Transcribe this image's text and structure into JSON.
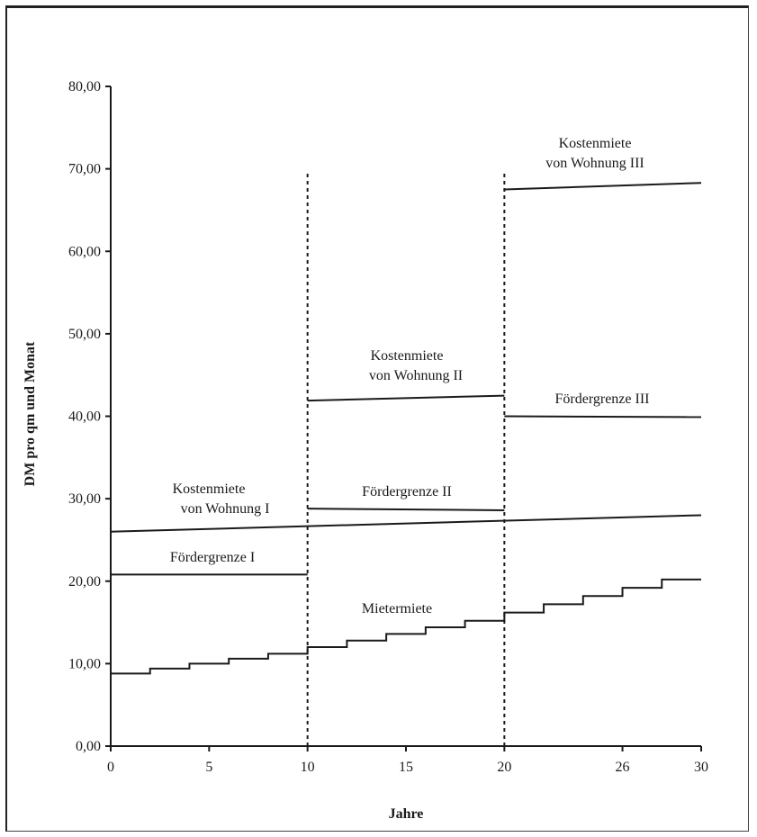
{
  "chart_data": {
    "type": "line",
    "xlabel": "Jahre",
    "ylabel": "DM pro qm und Monat",
    "xlim": [
      0,
      30
    ],
    "ylim": [
      0,
      80
    ],
    "x_ticks": [
      "0",
      "5",
      "10",
      "15",
      "20",
      "26",
      "30"
    ],
    "x_tick_values": [
      0,
      5,
      10,
      15,
      20,
      26,
      30
    ],
    "y_ticks": [
      "0,00",
      "10,00",
      "20,00",
      "30,00",
      "40,00",
      "50,00",
      "60,00",
      "70,00",
      "80,00"
    ],
    "y_tick_values": [
      0,
      10,
      20,
      30,
      40,
      50,
      60,
      70,
      80
    ],
    "grid": false,
    "vertical_markers": [
      10,
      20
    ],
    "series": [
      {
        "name": "Kostenmiete von Wohnung I",
        "x": [
          0,
          30
        ],
        "y": [
          26.0,
          28.0
        ]
      },
      {
        "name": "Kostenmiete von Wohnung II",
        "x": [
          10,
          20
        ],
        "y": [
          41.9,
          42.5
        ]
      },
      {
        "name": "Kostenmiete von Wohnung III",
        "x": [
          20,
          30
        ],
        "y": [
          67.5,
          68.3
        ]
      },
      {
        "name": "Fördergrenze I",
        "x": [
          0,
          10
        ],
        "y": [
          20.8,
          20.8
        ]
      },
      {
        "name": "Fördergrenze II",
        "x": [
          10,
          20
        ],
        "y": [
          28.8,
          28.6
        ]
      },
      {
        "name": "Fördergrenze III",
        "x": [
          20,
          30
        ],
        "y": [
          40.0,
          39.9
        ]
      },
      {
        "name": "Mietermiete",
        "step": true,
        "x": [
          0,
          2,
          4,
          6,
          8,
          10,
          12,
          14,
          16,
          18,
          20,
          22,
          24,
          26,
          28,
          30
        ],
        "y": [
          8.8,
          9.4,
          10.0,
          10.6,
          11.2,
          12.0,
          12.8,
          13.6,
          14.4,
          15.2,
          16.2,
          17.2,
          18.2,
          19.2,
          20.2,
          20.2
        ]
      }
    ],
    "annotations": {
      "kosten1_line1": "Kostenmiete",
      "kosten1_line2": "von Wohnung I",
      "kosten2_line1": "Kostenmiete",
      "kosten2_line2": "von Wohnung II",
      "kosten3_line1": "Kostenmiete",
      "kosten3_line2": "von Wohnung III",
      "foerder1": "Fördergrenze  I",
      "foerder2": "Fördergrenze II",
      "foerder3": "Fördergrenze III",
      "mieter": "Mietermiete"
    }
  }
}
